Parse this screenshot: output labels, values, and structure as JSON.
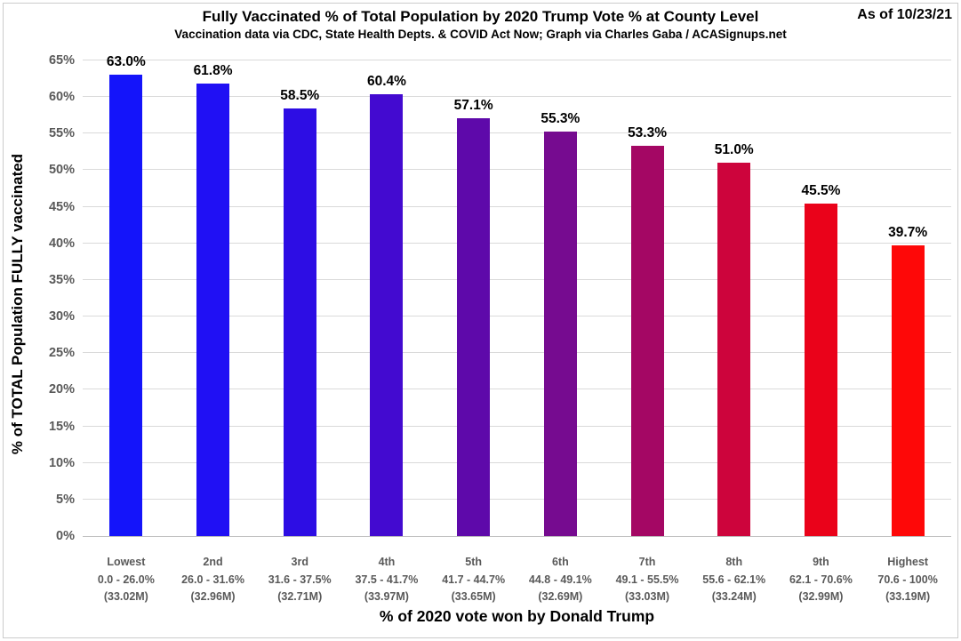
{
  "header": {
    "title": "Fully Vaccinated % of Total Population by 2020 Trump Vote % at County Level",
    "subtitle": "Vaccination data via CDC, State Health Depts. & COVID Act Now; Graph via Charles Gaba / ACASignups.net",
    "as_of": "As of 10/23/21"
  },
  "chart_data": {
    "type": "bar",
    "title": "Fully Vaccinated % of Total Population by 2020 Trump Vote % at County Level",
    "subtitle": "Vaccination data via CDC, State Health Depts. & COVID Act Now; Graph via Charles Gaba / ACASignups.net",
    "xlabel": "% of 2020 vote won by Donald Trump",
    "ylabel": "% of TOTAL Population FULLY vaccinated",
    "ylim": [
      0,
      65
    ],
    "ytick_step": 5,
    "ytick_suffix": "%",
    "grid": true,
    "legend": "none",
    "categories": [
      "Lowest",
      "2nd",
      "3rd",
      "4th",
      "5th",
      "6th",
      "7th",
      "8th",
      "9th",
      "Highest"
    ],
    "vote_ranges": [
      "0.0 - 26.0%",
      "26.0 - 31.6%",
      "31.6 - 37.5%",
      "37.5 - 41.7%",
      "41.7 - 44.7%",
      "44.8 - 49.1%",
      "49.1 - 55.5%",
      "55.6 - 62.1%",
      "62.1 - 70.6%",
      "70.6 - 100%"
    ],
    "populations": [
      "(33.02M)",
      "(32.96M)",
      "(32.71M)",
      "(33.97M)",
      "(33.65M)",
      "(32.69M)",
      "(33.03M)",
      "(33.24M)",
      "(32.99M)",
      "(33.19M)"
    ],
    "values": [
      63.0,
      61.8,
      58.5,
      60.4,
      57.1,
      55.3,
      53.3,
      51.0,
      45.5,
      39.7
    ],
    "value_labels": [
      "63.0%",
      "61.8%",
      "58.5%",
      "60.4%",
      "57.1%",
      "55.3%",
      "53.3%",
      "51.0%",
      "45.5%",
      "39.7%"
    ],
    "bar_colors": [
      "#1414fa",
      "#2010f4",
      "#2d0de4",
      "#430ad0",
      "#5e09aa",
      "#760b90",
      "#a40764",
      "#cd043c",
      "#ea021a",
      "#fe0808"
    ]
  },
  "colors": {
    "background": "#ffffff",
    "gridline": "#dadada",
    "axis_line": "#bfbfbf",
    "tick_label": "#595959",
    "text": "#000000",
    "blue_end": "#1414fa",
    "red_end": "#fe0808"
  }
}
